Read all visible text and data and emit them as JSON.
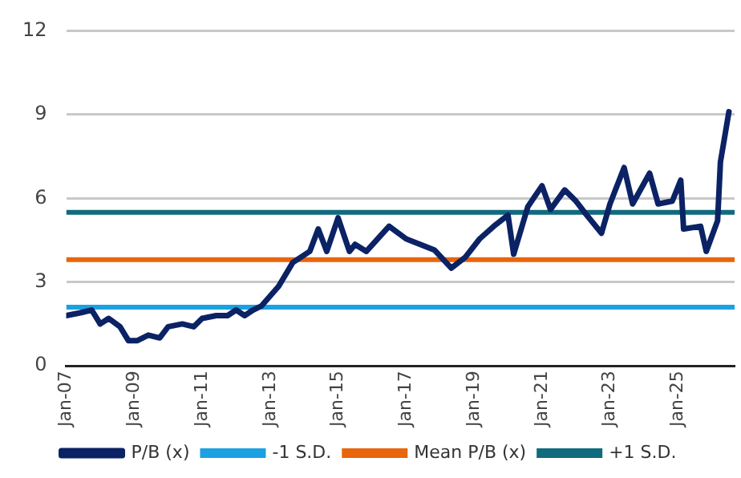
{
  "chart_data": {
    "type": "line",
    "legend": "bottom",
    "grid": "y",
    "marker": "none",
    "line_style": "solid",
    "xlim": [
      "2007-01",
      "2026-09"
    ],
    "xticks": [
      {
        "value": "2007-01",
        "label": "Jan-07"
      },
      {
        "value": "2009-01",
        "label": "Jan-09"
      },
      {
        "value": "2011-01",
        "label": "Jan-11"
      },
      {
        "value": "2013-01",
        "label": "Jan-13"
      },
      {
        "value": "2015-01",
        "label": "Jan-15"
      },
      {
        "value": "2017-01",
        "label": "Jan-17"
      },
      {
        "value": "2019-01",
        "label": "Jan-19"
      },
      {
        "value": "2021-01",
        "label": "Jan-21"
      },
      {
        "value": "2023-01",
        "label": "Jan-23"
      },
      {
        "value": "2025-01",
        "label": "Jan-25"
      }
    ],
    "ylim": [
      0,
      12
    ],
    "yticks": [
      0,
      3,
      6,
      9,
      12
    ],
    "x": [
      "2007-01",
      "2007-06",
      "2007-10",
      "2008-01",
      "2008-04",
      "2008-08",
      "2008-11",
      "2009-02",
      "2009-06",
      "2009-10",
      "2010-01",
      "2010-06",
      "2010-10",
      "2011-01",
      "2011-06",
      "2011-10",
      "2012-01",
      "2012-04",
      "2012-07",
      "2012-10",
      "2013-04",
      "2013-09",
      "2014-03",
      "2014-06",
      "2014-09",
      "2015-01",
      "2015-05",
      "2015-07",
      "2015-11",
      "2016-07",
      "2017-01",
      "2017-06",
      "2017-11",
      "2018-05",
      "2018-10",
      "2019-03",
      "2019-08",
      "2020-01",
      "2020-03",
      "2020-08",
      "2021-01",
      "2021-04",
      "2021-09",
      "2022-01",
      "2022-04",
      "2022-10",
      "2023-01",
      "2023-06",
      "2023-09",
      "2024-03",
      "2024-06",
      "2024-11",
      "2025-02",
      "2025-03",
      "2025-09",
      "2025-11",
      "2026-03",
      "2026-04",
      "2026-07"
    ],
    "series": [
      {
        "name": "P/B (x)",
        "color": "#0b2265",
        "values": [
          1.8,
          1.9,
          2.0,
          1.5,
          1.7,
          1.4,
          0.9,
          0.9,
          1.1,
          1.0,
          1.4,
          1.5,
          1.4,
          1.7,
          1.8,
          1.8,
          2.0,
          1.8,
          2.0,
          2.15,
          2.85,
          3.7,
          4.1,
          4.9,
          4.1,
          5.3,
          4.1,
          4.35,
          4.1,
          5.0,
          4.55,
          4.35,
          4.15,
          3.5,
          3.9,
          4.55,
          5.0,
          5.4,
          4.0,
          5.7,
          6.45,
          5.6,
          6.3,
          5.9,
          5.5,
          4.75,
          5.8,
          7.1,
          5.8,
          6.9,
          5.8,
          5.9,
          6.65,
          4.9,
          5.0,
          4.1,
          5.2,
          7.3,
          9.1
        ]
      }
    ],
    "ref_lines": [
      {
        "axis": "y",
        "value": 2.1,
        "label": "-1 S.D.",
        "color": "#1ba1e2"
      },
      {
        "axis": "y",
        "value": 3.8,
        "label": "Mean P/B (x)",
        "color": "#e8650c"
      },
      {
        "axis": "y",
        "value": 5.5,
        "label": "+1 S.D.",
        "color": "#0f6b7d"
      }
    ]
  }
}
